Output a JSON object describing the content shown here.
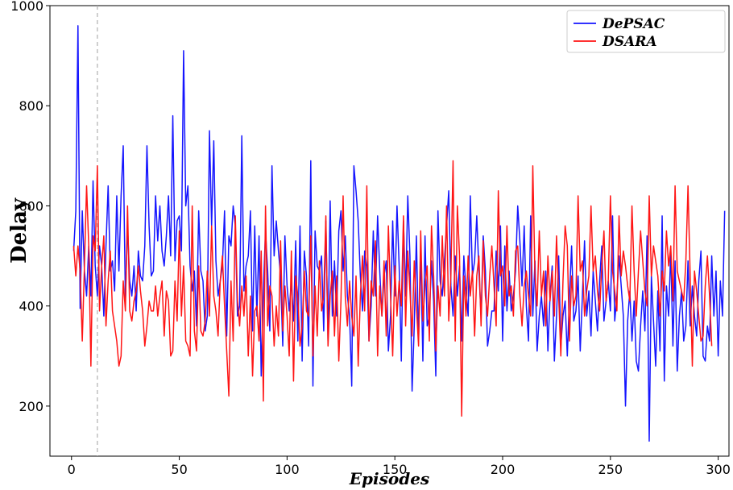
{
  "chart_data": {
    "type": "line",
    "title": "",
    "xlabel": "Episodes",
    "ylabel": "Delay",
    "xlim": [
      -10,
      305
    ],
    "ylim": [
      100,
      1000
    ],
    "xticks": [
      0,
      50,
      100,
      150,
      200,
      250,
      300
    ],
    "yticks": [
      200,
      400,
      600,
      800,
      1000
    ],
    "grid": false,
    "legend_position": "top-right",
    "reference_line": {
      "x": 12,
      "style": "dashed",
      "color": "#b0b0b0"
    },
    "series": [
      {
        "name": "DePSAC",
        "color": "#1515ff",
        "values": [
          510,
          590,
          960,
          395,
          590,
          470,
          420,
          520,
          420,
          650,
          480,
          420,
          520,
          480,
          380,
          520,
          640,
          470,
          490,
          430,
          620,
          470,
          620,
          720,
          410,
          560,
          450,
          420,
          480,
          390,
          510,
          460,
          450,
          520,
          720,
          560,
          460,
          470,
          620,
          530,
          600,
          510,
          480,
          540,
          620,
          500,
          780,
          490,
          570,
          580,
          510,
          910,
          600,
          640,
          480,
          430,
          470,
          360,
          590,
          470,
          450,
          350,
          380,
          750,
          560,
          730,
          490,
          420,
          450,
          480,
          590,
          340,
          540,
          520,
          600,
          560,
          380,
          400,
          740,
          430,
          480,
          500,
          590,
          350,
          560,
          380,
          540,
          260,
          430,
          550,
          470,
          350,
          680,
          500,
          570,
          510,
          460,
          320,
          540,
          440,
          390,
          450,
          370,
          530,
          330,
          560,
          290,
          510,
          460,
          320,
          690,
          240,
          550,
          480,
          470,
          500,
          350,
          570,
          330,
          610,
          380,
          490,
          380,
          550,
          590,
          470,
          540,
          420,
          380,
          240,
          680,
          630,
          570,
          460,
          390,
          510,
          480,
          330,
          400,
          550,
          420,
          580,
          470,
          380,
          460,
          490,
          310,
          380,
          570,
          420,
          600,
          480,
          290,
          570,
          420,
          620,
          500,
          230,
          360,
          540,
          330,
          510,
          290,
          540,
          360,
          380,
          490,
          410,
          260,
          590,
          450,
          420,
          490,
          560,
          630,
          440,
          380,
          500,
          420,
          480,
          330,
          500,
          430,
          380,
          620,
          460,
          490,
          580,
          470,
          380,
          540,
          470,
          320,
          350,
          390,
          390,
          510,
          430,
          560,
          330,
          520,
          390,
          470,
          390,
          420,
          470,
          600,
          530,
          440,
          560,
          400,
          330,
          580,
          380,
          490,
          310,
          380,
          420,
          360,
          470,
          310,
          420,
          480,
          290,
          380,
          500,
          320,
          380,
          410,
          300,
          420,
          520,
          370,
          390,
          460,
          310,
          420,
          530,
          380,
          430,
          340,
          470,
          410,
          350,
          450,
          520,
          370,
          410,
          450,
          390,
          580,
          370,
          420,
          500,
          440,
          380,
          200,
          370,
          430,
          330,
          410,
          290,
          270,
          360,
          430,
          350,
          540,
          130,
          460,
          370,
          280,
          430,
          310,
          580,
          250,
          440,
          380,
          510,
          320,
          490,
          270,
          380,
          430,
          330,
          360,
          490,
          360,
          440,
          380,
          340,
          450,
          510,
          300,
          290,
          360,
          330,
          500,
          380,
          470,
          300,
          450,
          380,
          590
        ]
      },
      {
        "name": "DSARA",
        "color": "#ff1515",
        "values": [
          520,
          460,
          520,
          470,
          330,
          480,
          640,
          520,
          280,
          540,
          510,
          680,
          390,
          480,
          540,
          360,
          450,
          510,
          390,
          360,
          330,
          280,
          300,
          450,
          390,
          600,
          390,
          370,
          410,
          430,
          480,
          430,
          390,
          320,
          360,
          410,
          390,
          390,
          440,
          380,
          420,
          450,
          340,
          430,
          410,
          300,
          310,
          450,
          370,
          550,
          380,
          480,
          330,
          320,
          300,
          600,
          350,
          310,
          480,
          350,
          340,
          370,
          470,
          380,
          560,
          420,
          390,
          340,
          450,
          500,
          400,
          310,
          220,
          450,
          330,
          580,
          410,
          360,
          440,
          380,
          460,
          300,
          420,
          260,
          390,
          400,
          330,
          510,
          210,
          600,
          360,
          440,
          420,
          320,
          400,
          340,
          530,
          350,
          440,
          380,
          300,
          510,
          250,
          460,
          420,
          320,
          360,
          470,
          390,
          380,
          540,
          300,
          440,
          340,
          490,
          390,
          420,
          580,
          320,
          420,
          470,
          340,
          460,
          290,
          410,
          620,
          420,
          360,
          450,
          380,
          340,
          460,
          280,
          420,
          500,
          390,
          640,
          330,
          450,
          420,
          530,
          300,
          440,
          380,
          490,
          340,
          560,
          420,
          300,
          480,
          380,
          450,
          400,
          580,
          360,
          510,
          430,
          340,
          490,
          400,
          320,
          550,
          370,
          440,
          480,
          330,
          560,
          460,
          310,
          440,
          380,
          540,
          420,
          600,
          370,
          460,
          690,
          330,
          600,
          500,
          180,
          460,
          380,
          500,
          420,
          470,
          340,
          460,
          500,
          360,
          530,
          420,
          380,
          460,
          520,
          440,
          360,
          630,
          460,
          480,
          400,
          560,
          420,
          440,
          380,
          510,
          520,
          420,
          360,
          440,
          470,
          420,
          380,
          680,
          460,
          400,
          550,
          420,
          470,
          360,
          500,
          410,
          470,
          380,
          540,
          420,
          300,
          450,
          560,
          520,
          330,
          460,
          400,
          420,
          620,
          470,
          490,
          380,
          430,
          460,
          600,
          470,
          500,
          430,
          390,
          480,
          550,
          410,
          450,
          620,
          470,
          430,
          390,
          580,
          460,
          510,
          480,
          440,
          410,
          600,
          470,
          380,
          470,
          550,
          490,
          430,
          400,
          620,
          460,
          520,
          490,
          460,
          380,
          470,
          430,
          550,
          480,
          520,
          410,
          640,
          470,
          450,
          430,
          410,
          490,
          640,
          460,
          280,
          470,
          430,
          380,
          330,
          340,
          440,
          500,
          420,
          320
        ]
      }
    ]
  }
}
